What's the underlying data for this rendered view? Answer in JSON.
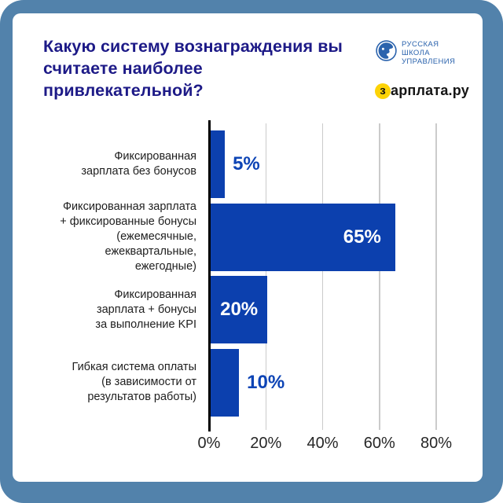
{
  "frame": {
    "border_color": "#5282ab",
    "card_color": "#ffffff"
  },
  "header": {
    "title": "Какую систему вознаграждения вы считаете наиболее привлекательной?",
    "title_color": "#1d1a87",
    "logo_rsu": {
      "line1": "РУССКАЯ",
      "line2": "ШКОЛА",
      "line3": "УПРАВЛЕНИЯ",
      "color": "#2b63ad"
    },
    "logo_zarplata": {
      "first_letter": "з",
      "rest": "арплата.ру",
      "badge_color": "#fdd306",
      "text_color": "#151515"
    }
  },
  "chart_data": {
    "type": "bar",
    "orientation": "horizontal",
    "title": "Какую систему вознаграждения вы считаете наиболее привлекательной?",
    "categories": [
      "Фиксированная\nзарплата без бонусов",
      "Фиксированная зарплата\n+ фиксированные бонусы\n(ежемесячные,\nежеквартальные,\nежегодные)",
      "Фиксированная\nзарплата + бонусы\nза выполнение KPI",
      "Гибкая система оплаты\n(в зависимости от\nрезультатов работы)"
    ],
    "values": [
      5,
      65,
      20,
      10
    ],
    "value_labels": [
      "5%",
      "65%",
      "20%",
      "10%"
    ],
    "xlim": [
      0,
      80
    ],
    "x_ticks": [
      "0%",
      "20%",
      "40%",
      "60%",
      "80%"
    ],
    "grid": true,
    "legend": "none",
    "bar_color": "#0c40ae",
    "value_label_inside_color": "#ffffff",
    "value_label_outside_color": "#0d44b5",
    "gridline_color": "#cbcbcb",
    "axis_color": "#000000",
    "tick_text_color": "#262626",
    "category_text_color": "#1e1e1e"
  }
}
